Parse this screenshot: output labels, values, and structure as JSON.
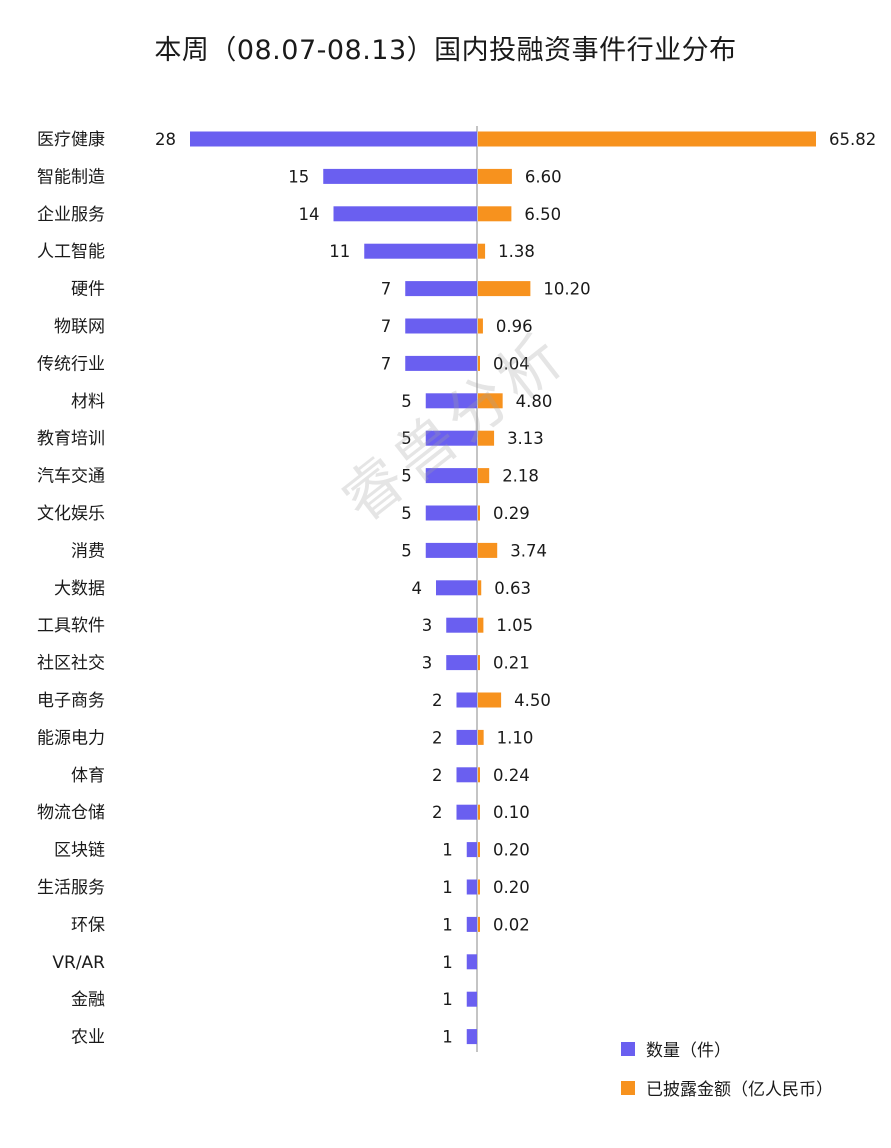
{
  "watermark": "睿兽分析",
  "colors": {
    "count": "#6a5ff0",
    "amount": "#f7921e",
    "axis": "#b0b0b0"
  },
  "chart_data": {
    "type": "bar",
    "orientation": "horizontal-diverging",
    "title": "本周（08.07-08.13）国内投融资事件行业分布",
    "categories": [
      "医疗健康",
      "智能制造",
      "企业服务",
      "人工智能",
      "硬件",
      "物联网",
      "传统行业",
      "材料",
      "教育培训",
      "汽车交通",
      "文化娱乐",
      "消费",
      "大数据",
      "工具软件",
      "社区社交",
      "电子商务",
      "能源电力",
      "体育",
      "物流仓储",
      "区块链",
      "生活服务",
      "环保",
      "VR/AR",
      "金融",
      "农业"
    ],
    "series": [
      {
        "name": "数量（件）",
        "color": "#6a5ff0",
        "direction": "left",
        "values": [
          28,
          15,
          14,
          11,
          7,
          7,
          7,
          5,
          5,
          5,
          5,
          5,
          4,
          3,
          3,
          2,
          2,
          2,
          2,
          1,
          1,
          1,
          1,
          1,
          1
        ],
        "labels": [
          "28",
          "15",
          "14",
          "11",
          "7",
          "7",
          "7",
          "5",
          "5",
          "5",
          "5",
          "5",
          "4",
          "3",
          "3",
          "2",
          "2",
          "2",
          "2",
          "1",
          "1",
          "1",
          "1",
          "1",
          "1"
        ]
      },
      {
        "name": "已披露金额（亿人民币）",
        "color": "#f7921e",
        "direction": "right",
        "values": [
          65.82,
          6.6,
          6.5,
          1.38,
          10.2,
          0.96,
          0.04,
          4.8,
          3.13,
          2.18,
          0.29,
          3.74,
          0.63,
          1.05,
          0.21,
          4.5,
          1.1,
          0.24,
          0.1,
          0.2,
          0.2,
          0.02,
          null,
          null,
          null
        ],
        "labels": [
          "65.82",
          "6.60",
          "6.50",
          "1.38",
          "10.20",
          "0.96",
          "0.04",
          "4.80",
          "3.13",
          "2.18",
          "0.29",
          "3.74",
          "0.63",
          "1.05",
          "0.21",
          "4.50",
          "1.10",
          "0.24",
          "0.10",
          "0.20",
          "0.20",
          "0.02",
          "",
          "",
          ""
        ]
      }
    ],
    "legend": {
      "placement": "bottom-right"
    }
  }
}
